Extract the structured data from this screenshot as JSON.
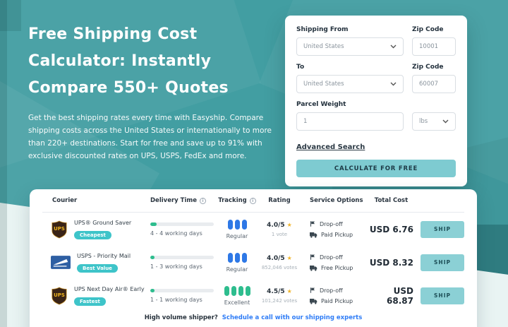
{
  "hero": {
    "title_lines": [
      "Free Shipping Cost",
      "Calculator: Instantly",
      "Compare 550+ Quotes"
    ],
    "description": "Get the best shipping rates every time with Easyship. Compare shipping costs across the United States or internationally to more than 220+ destinations. Start for free and save up to 91% with exclusive discounted rates on UPS, USPS, FedEx and more."
  },
  "calculator": {
    "shipping_from": {
      "label": "Shipping From",
      "value": "United States"
    },
    "zip_from": {
      "label": "Zip Code",
      "value": "10001"
    },
    "to": {
      "label": "To",
      "value": "United States"
    },
    "zip_to": {
      "label": "Zip Code",
      "value": "60007"
    },
    "parcel_weight": {
      "label": "Parcel Weight",
      "value": "1"
    },
    "unit": {
      "value": "lbs"
    },
    "advanced_search_label": "Advanced Search",
    "submit_label": "CALCULATE FOR FREE"
  },
  "results": {
    "headers": {
      "courier": "Courier",
      "delivery_time": "Delivery Time",
      "tracking": "Tracking",
      "rating": "Rating",
      "service_options": "Service Options",
      "total_cost": "Total Cost"
    },
    "ship_label": "SHIP",
    "rows": [
      {
        "courier": "UPS® Ground Saver",
        "carrier": "ups",
        "badge": "Cheapest",
        "delivery_text": "4 - 4 working days",
        "delivery_progress_pct": 10,
        "tracking_label": "Regular",
        "tracking_dots": 3,
        "tracking_color": "blue",
        "rating": "4.0/5",
        "votes": "1 vote",
        "service_1": "Drop-off",
        "service_2": "Paid Pickup",
        "total_cost": "USD 6.76"
      },
      {
        "courier": "USPS - Priority Mail",
        "carrier": "usps",
        "badge": "Best Value",
        "delivery_text": "1 - 3 working days",
        "delivery_progress_pct": 7,
        "tracking_label": "Regular",
        "tracking_dots": 3,
        "tracking_color": "blue",
        "rating": "4.0/5",
        "votes": "852,046 votes",
        "service_1": "Drop-off",
        "service_2": "Free Pickup",
        "total_cost": "USD 8.32"
      },
      {
        "courier": "UPS Next Day Air® Early",
        "carrier": "ups",
        "badge": "Fastest",
        "delivery_text": "1 - 1 working days",
        "delivery_progress_pct": 7,
        "tracking_label": "Excellent",
        "tracking_dots": 4,
        "tracking_color": "green",
        "rating": "4.5/5",
        "votes": "101,242 votes",
        "service_1": "Drop-off",
        "service_2": "Paid Pickup",
        "total_cost": "USD 68.87"
      }
    ],
    "footer": {
      "prompt": "High volume shipper?",
      "link": "Schedule a call with our shipping experts"
    }
  },
  "colors": {
    "background": "#429ea2",
    "background-dark": "#2c7d81",
    "background-mint": "#e9f4f3",
    "accent": "#7ecbd1",
    "badge": "#3ec4c9",
    "track-blue": "#2e78e6",
    "track-green": "#2ebd8e",
    "star-gold": "#f0b429",
    "link-blue": "#2e7cf6",
    "ink": "#22313f",
    "muted": "#8a949d"
  }
}
